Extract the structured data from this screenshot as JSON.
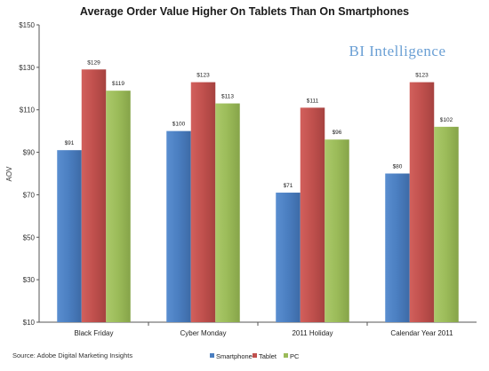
{
  "chart_data": {
    "type": "bar",
    "title": "Average Order Value Higher On Tablets Than On Smartphones",
    "xlabel": "",
    "ylabel": "AOV",
    "ylim": [
      10,
      150
    ],
    "y_ticks": [
      10,
      30,
      50,
      70,
      90,
      110,
      130,
      150
    ],
    "y_tick_labels": [
      "$10",
      "$30",
      "$50",
      "$70",
      "$90",
      "$110",
      "$130",
      "$150"
    ],
    "categories": [
      "Black Friday",
      "Cyber Monday",
      "2011 Holiday",
      "Calendar Year 2011"
    ],
    "series": [
      {
        "name": "Smartphone",
        "color": "#4a7ec0",
        "values": [
          91,
          100,
          71,
          80
        ],
        "labels": [
          "$91",
          "$100",
          "$71",
          "$80"
        ]
      },
      {
        "name": "Tablet",
        "color": "#c0504d",
        "values": [
          129,
          123,
          111,
          123
        ],
        "labels": [
          "$129",
          "$123",
          "$111",
          "$123"
        ]
      },
      {
        "name": "PC",
        "color": "#9bbb59",
        "values": [
          119,
          113,
          96,
          102
        ],
        "labels": [
          "$119",
          "$113",
          "$96",
          "$102"
        ]
      }
    ],
    "grid": false,
    "legend_position": "bottom-right",
    "brand": "BI Intelligence",
    "source": "Source: Adobe Digital Marketing Insights"
  }
}
